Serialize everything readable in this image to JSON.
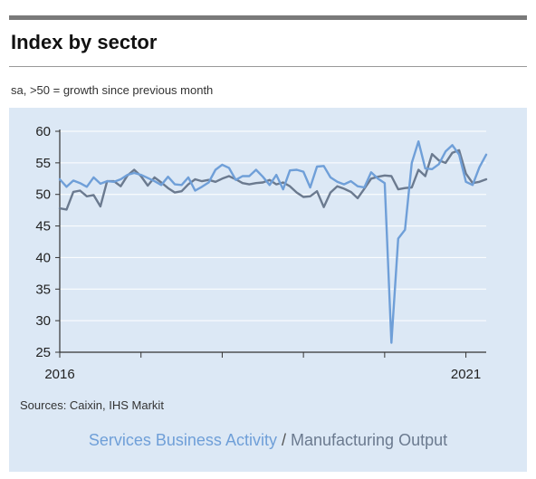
{
  "title": "Index by sector",
  "subtitle": "sa, >50 = growth since previous month",
  "source": "Sources: Caixin, IHS Markit",
  "colors": {
    "services": "#6f9fd8",
    "manufacturing": "#6b7a8f",
    "panel": "#dce8f5",
    "grid": "#ffffff",
    "axis": "#333333"
  },
  "legend": {
    "services_label": "Services Business Activity",
    "separator": "/",
    "manufacturing_label": "Manufacturing Output"
  },
  "chart_data": {
    "type": "line",
    "y_ticks": [
      "60",
      "55",
      "50",
      "45",
      "40",
      "35",
      "30",
      "25"
    ],
    "x_tick_labels": [
      "2016",
      "2021"
    ],
    "ylim": [
      25,
      60
    ],
    "xlim": [
      "2016-01",
      "2021-04"
    ],
    "grid": true,
    "x": [
      "2016-01",
      "2016-02",
      "2016-03",
      "2016-04",
      "2016-05",
      "2016-06",
      "2016-07",
      "2016-08",
      "2016-09",
      "2016-10",
      "2016-11",
      "2016-12",
      "2017-01",
      "2017-02",
      "2017-03",
      "2017-04",
      "2017-05",
      "2017-06",
      "2017-07",
      "2017-08",
      "2017-09",
      "2017-10",
      "2017-11",
      "2017-12",
      "2018-01",
      "2018-02",
      "2018-03",
      "2018-04",
      "2018-05",
      "2018-06",
      "2018-07",
      "2018-08",
      "2018-09",
      "2018-10",
      "2018-11",
      "2018-12",
      "2019-01",
      "2019-02",
      "2019-03",
      "2019-04",
      "2019-05",
      "2019-06",
      "2019-07",
      "2019-08",
      "2019-09",
      "2019-10",
      "2019-11",
      "2019-12",
      "2020-01",
      "2020-02",
      "2020-03",
      "2020-04",
      "2020-05",
      "2020-06",
      "2020-07",
      "2020-08",
      "2020-09",
      "2020-10",
      "2020-11",
      "2020-12",
      "2021-01",
      "2021-02",
      "2021-03",
      "2021-04"
    ],
    "series": [
      {
        "name": "Services Business Activity",
        "values": [
          52.4,
          51.2,
          52.2,
          51.8,
          51.2,
          52.7,
          51.7,
          52.1,
          52.0,
          52.4,
          53.1,
          53.4,
          53.1,
          52.6,
          52.1,
          51.5,
          52.8,
          51.6,
          51.5,
          52.7,
          50.6,
          51.2,
          51.9,
          53.9,
          54.7,
          54.2,
          52.3,
          52.9,
          52.9,
          53.9,
          52.8,
          51.5,
          53.1,
          50.8,
          53.8,
          53.9,
          53.6,
          51.1,
          54.4,
          54.5,
          52.7,
          52.0,
          51.6,
          52.1,
          51.3,
          51.1,
          53.5,
          52.5,
          51.8,
          26.5,
          43.0,
          44.4,
          55.0,
          58.4,
          54.1,
          54.0,
          54.8,
          56.8,
          57.8,
          56.3,
          52.0,
          51.5,
          54.3,
          56.3
        ]
      },
      {
        "name": "Manufacturing Output",
        "values": [
          47.8,
          47.6,
          50.4,
          50.6,
          49.7,
          49.9,
          48.1,
          52.1,
          52.1,
          51.3,
          53.0,
          53.9,
          52.9,
          51.4,
          52.7,
          51.9,
          51.0,
          50.3,
          50.5,
          51.6,
          52.4,
          52.1,
          52.3,
          52.0,
          52.5,
          52.9,
          52.4,
          51.8,
          51.6,
          51.8,
          51.9,
          52.3,
          51.6,
          51.9,
          51.3,
          50.3,
          49.6,
          49.7,
          50.5,
          48.0,
          50.3,
          51.3,
          50.9,
          50.4,
          49.4,
          50.9,
          52.5,
          52.8,
          53.0,
          52.9,
          50.8,
          51.0,
          51.1,
          53.9,
          52.9,
          56.4,
          55.4,
          55.0,
          56.6,
          57.0,
          53.3,
          51.8,
          52.0,
          52.4
        ]
      }
    ]
  }
}
